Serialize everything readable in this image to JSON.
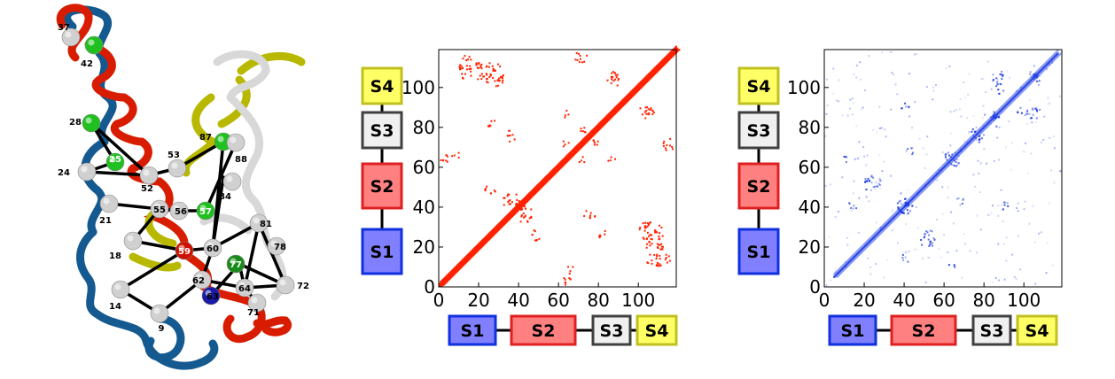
{
  "protein": {
    "nodes": [
      {
        "id": "37",
        "color": "#d0d0d0"
      },
      {
        "id": "42",
        "color": "#20c020"
      },
      {
        "id": "28",
        "color": "#20c020"
      },
      {
        "id": "25",
        "color": "#20c020"
      },
      {
        "id": "24",
        "color": "#d0d0d0"
      },
      {
        "id": "52",
        "color": "#d0d0d0"
      },
      {
        "id": "53",
        "color": "#d0d0d0"
      },
      {
        "id": "87",
        "color": "#20c020"
      },
      {
        "id": "88",
        "color": "#d0d0d0"
      },
      {
        "id": "84",
        "color": "#d0d0d0"
      },
      {
        "id": "21",
        "color": "#d0d0d0"
      },
      {
        "id": "55",
        "color": "#d0d0d0"
      },
      {
        "id": "56",
        "color": "#d0d0d0"
      },
      {
        "id": "57",
        "color": "#20c020"
      },
      {
        "id": "81",
        "color": "#d0d0d0"
      },
      {
        "id": "78",
        "color": "#d0d0d0"
      },
      {
        "id": "18",
        "color": "#d0d0d0"
      },
      {
        "id": "59",
        "color": "#cc1100"
      },
      {
        "id": "60",
        "color": "#d0d0d0"
      },
      {
        "id": "77",
        "color": "#1a8a1a"
      },
      {
        "id": "62",
        "color": "#d0d0d0"
      },
      {
        "id": "63",
        "color": "#1a1aa8"
      },
      {
        "id": "64",
        "color": "#d0d0d0"
      },
      {
        "id": "72",
        "color": "#d0d0d0"
      },
      {
        "id": "14",
        "color": "#d0d0d0"
      },
      {
        "id": "9",
        "color": "#d0d0d0"
      },
      {
        "id": "71",
        "color": "#d0d0d0"
      }
    ]
  },
  "segments": {
    "labels": [
      "S1",
      "S2",
      "S3",
      "S4"
    ],
    "fills": [
      "#8080ff",
      "#ff8080",
      "#f0f0f0",
      "#ffff66"
    ],
    "borders": [
      "#1030e0",
      "#e02020",
      "#404040",
      "#c0c020"
    ]
  },
  "chart_data": [
    {
      "type": "heatmap",
      "description_color": "#ff2200",
      "xlim": [
        0,
        119
      ],
      "ylim": [
        0,
        119
      ],
      "xticks": [
        "0",
        "20",
        "40",
        "60",
        "80",
        "100"
      ],
      "yticks": [
        "0",
        "20",
        "40",
        "60",
        "80",
        "100"
      ],
      "diagonal_band": [
        [
          1,
          119
        ]
      ],
      "contact_blocks": [
        [
          6,
          64,
          4,
          3
        ],
        [
          18,
          102,
          14,
          10
        ],
        [
          68,
          112,
          6,
          5
        ],
        [
          62,
          70,
          4,
          3
        ],
        [
          84,
          62,
          4,
          3
        ],
        [
          100,
          84,
          8,
          6
        ],
        [
          86,
          101,
          3,
          2
        ],
        [
          22,
          46,
          6,
          4
        ],
        [
          32,
          40,
          8,
          6
        ],
        [
          38,
          38,
          6,
          5
        ],
        [
          62,
          0,
          4,
          6
        ],
        [
          100,
          28,
          6,
          4
        ],
        [
          104,
          10,
          12,
          6
        ],
        [
          72,
          34,
          6,
          4
        ],
        [
          80,
          24,
          6,
          4
        ],
        [
          76,
          70,
          4,
          4
        ]
      ]
    },
    {
      "type": "heatmap",
      "description_color": "#1030e0",
      "xlim": [
        0,
        119
      ],
      "ylim": [
        0,
        119
      ],
      "xticks": [
        "0",
        "20",
        "40",
        "60",
        "80",
        "100"
      ],
      "yticks": [
        "0",
        "20",
        "40",
        "60",
        "80",
        "100"
      ],
      "diagonal_band": [
        [
          5,
          117
        ]
      ],
      "contact_blocks": [
        [
          8,
          62,
          4,
          3
        ],
        [
          20,
          48,
          8,
          6
        ],
        [
          36,
          36,
          8,
          6
        ],
        [
          60,
          62,
          6,
          5
        ],
        [
          74,
          72,
          6,
          4
        ],
        [
          80,
          84,
          6,
          4
        ],
        [
          100,
          84,
          8,
          6
        ],
        [
          86,
          96,
          4,
          3
        ],
        [
          102,
          104,
          6,
          4
        ],
        [
          52,
          20,
          4,
          4
        ],
        [
          38,
          12,
          4,
          4
        ],
        [
          66,
          40,
          4,
          4
        ],
        [
          88,
          38,
          4,
          4
        ]
      ]
    }
  ]
}
